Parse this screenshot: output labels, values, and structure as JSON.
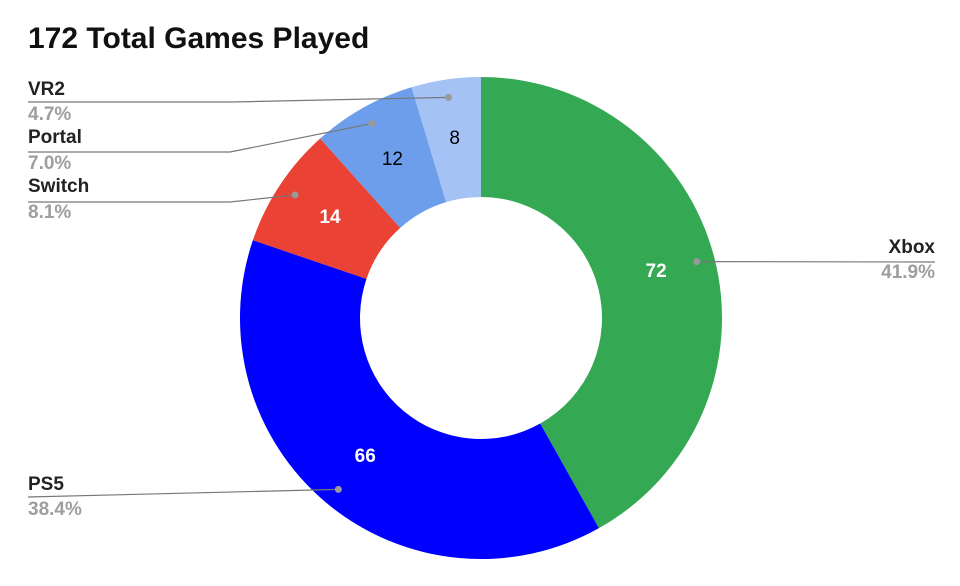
{
  "chart_data": {
    "type": "donut",
    "title": "172 Total Games Played",
    "categories": [
      "Xbox",
      "PS5",
      "Switch",
      "Portal",
      "VR2"
    ],
    "values": [
      72,
      66,
      14,
      12,
      8
    ],
    "shares": [
      41.9,
      38.4,
      8.1,
      7.0,
      4.7
    ],
    "share_labels": [
      "41.9%",
      "38.4%",
      "8.1%",
      "7.0%",
      "4.7%"
    ],
    "colors": [
      "#34a853",
      "#0000ff",
      "#ea4335",
      "#6d9eeb",
      "#a4c2f4"
    ],
    "label_colors": [
      "#ffffff",
      "#ffffff",
      "#ffffff",
      "#000000",
      "#000000"
    ]
  }
}
